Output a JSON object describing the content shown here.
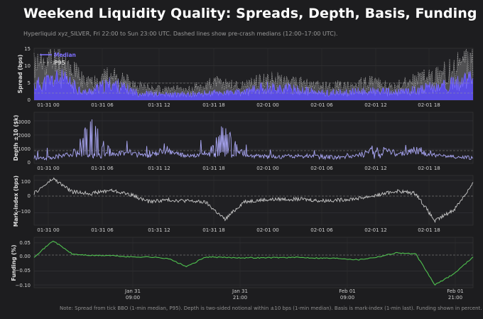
{
  "title": "Weekend Liquidity Quality: Spreads, Depth, Basis, Funding",
  "subtitle": "Hyperliquid xyz_SILVER, Fri 22:00 to Sun 23:00 UTC. Dashed lines show pre-crash medians (12:00–17:00 UTC).",
  "note": "Note: Spread from tick BBO (1-min median, P95). Depth is two-sided notional within ±10 bps (1-min median). Basis is mark-index (1-min last). Funding shown in percent.",
  "colors": {
    "median": "#6d5cff",
    "p95": "#8c8c8c",
    "depth": "#a9a6f4",
    "basis": "#c8c8c8",
    "funding": "#4fc24f"
  },
  "chart_data": [
    {
      "type": "line",
      "ylabel": "Spread (bps)",
      "ylim": [
        0,
        15
      ],
      "yticks": [
        "0",
        "5",
        "10",
        "15"
      ],
      "xticks": [
        "01-31 00",
        "01-31 06",
        "01-31 12",
        "01-31 18",
        "02-01 00",
        "02-01 06",
        "02-01 12",
        "02-01 18"
      ],
      "legend": "upper-left",
      "series": [
        {
          "name": "Median",
          "values": [
            4,
            6,
            2,
            4.5,
            2,
            1.5,
            1.5,
            2,
            2,
            3.5,
            3,
            2,
            2,
            2.5,
            2,
            3,
            4,
            5.5
          ]
        },
        {
          "name": "P95",
          "values": [
            10,
            12,
            5,
            7,
            4,
            3,
            3,
            5,
            4,
            6,
            5,
            4,
            4,
            5,
            4,
            6,
            8,
            12
          ]
        }
      ]
    },
    {
      "type": "line",
      "ylabel": "Depth ±10 ($k)",
      "ylim": [
        0,
        3600
      ],
      "yticks": [
        "0",
        "1000",
        "2000",
        "3000"
      ],
      "xticks": [
        "01-31 00",
        "01-31 06",
        "01-31 12",
        "01-31 18",
        "02-01 00",
        "02-01 06",
        "02-01 12",
        "02-01 18"
      ],
      "series": [
        {
          "name": "",
          "values": [
            250,
            300,
            550,
            3500,
            600,
            700,
            450,
            900,
            400,
            600,
            3200,
            450,
            400,
            350,
            400,
            350,
            300,
            450,
            1200,
            500,
            900,
            450,
            350,
            250
          ]
        }
      ]
    },
    {
      "type": "line",
      "ylabel": "Mark-index (bps)",
      "ylim": [
        -175,
        130
      ],
      "yticks": [
        "100",
        "0",
        "−100"
      ],
      "xticks": [
        "01-31 00",
        "01-31 06",
        "01-31 12",
        "01-31 18",
        "02-01 00",
        "02-01 06",
        "02-01 12",
        "02-01 18"
      ],
      "series": [
        {
          "name": "",
          "values": [
            20,
            110,
            30,
            20,
            40,
            15,
            -30,
            -20,
            -25,
            -35,
            -140,
            -30,
            -20,
            -15,
            -15,
            -25,
            -20,
            -10,
            10,
            35,
            20,
            -150,
            -80,
            80
          ]
        }
      ]
    },
    {
      "type": "line",
      "ylabel": "Funding (%)",
      "ylim": [
        -0.11,
        0.07
      ],
      "yticks": [
        "0.05",
        "0.00",
        "−0.05",
        "−0.10"
      ],
      "xticks": [
        "Jan 31\n09:00",
        "Jan 31\n21:00",
        "Feb 01\n09:00",
        "Feb 01\n21:00"
      ],
      "series": [
        {
          "name": "",
          "values": [
            0.0,
            0.058,
            0.01,
            0.005,
            0.005,
            0.0,
            0.0,
            -0.005,
            -0.035,
            0.0,
            -0.002,
            -0.003,
            -0.003,
            -0.002,
            -0.002,
            -0.004,
            -0.005,
            -0.01,
            0.0,
            0.015,
            0.01,
            -0.1,
            -0.06,
            0.0
          ]
        }
      ]
    }
  ]
}
